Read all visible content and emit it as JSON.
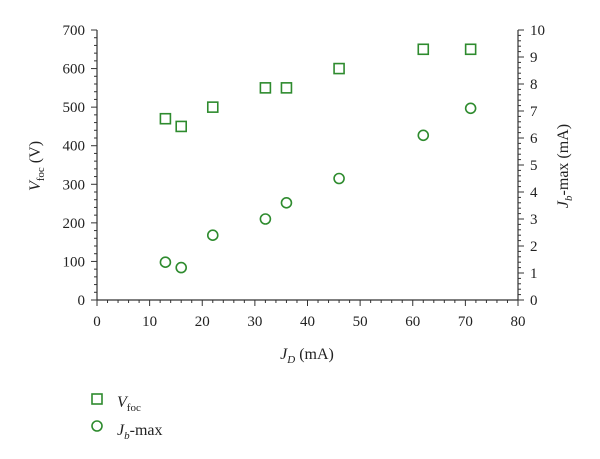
{
  "chart_data": {
    "type": "scatter",
    "x_axis": {
      "label_main": "J",
      "label_sub": "D",
      "label_unit": " (mA)",
      "range": [
        0,
        80
      ],
      "ticks": [
        "0",
        "10",
        "20",
        "30",
        "40",
        "50",
        "60",
        "70",
        "80"
      ],
      "minor_step": 2
    },
    "y_axis_left": {
      "label_main": "V",
      "label_sub": "foc",
      "label_unit": " (V)",
      "range": [
        0,
        700
      ],
      "ticks": [
        "0",
        "100",
        "200",
        "300",
        "400",
        "500",
        "600",
        "700"
      ],
      "minor_step": 20
    },
    "y_axis_right": {
      "label_main": "J",
      "label_sub": "b",
      "label_unit": "-max (mA)",
      "range": [
        0,
        10
      ],
      "ticks": [
        "0",
        "1",
        "2",
        "3",
        "4",
        "5",
        "6",
        "7",
        "8",
        "9",
        "10"
      ],
      "minor_step": 0.2
    },
    "series": [
      {
        "name_main": "V",
        "name_sub": "foc",
        "name_suffix": "",
        "marker": "square",
        "axis": "left",
        "color": "#2e8b2e",
        "x": [
          13,
          16,
          22,
          32,
          36,
          46,
          62,
          71
        ],
        "y": [
          470,
          450,
          500,
          550,
          550,
          600,
          650,
          650
        ]
      },
      {
        "name_main": "J",
        "name_sub": "b",
        "name_suffix": "-max",
        "marker": "circle",
        "axis": "right",
        "color": "#2e8b2e",
        "x": [
          13,
          16,
          22,
          32,
          36,
          46,
          62,
          71
        ],
        "y": [
          1.4,
          1.2,
          2.4,
          3.0,
          3.6,
          4.5,
          6.1,
          7.1
        ]
      }
    ],
    "legend_position": "bottom-left",
    "grid": false
  }
}
